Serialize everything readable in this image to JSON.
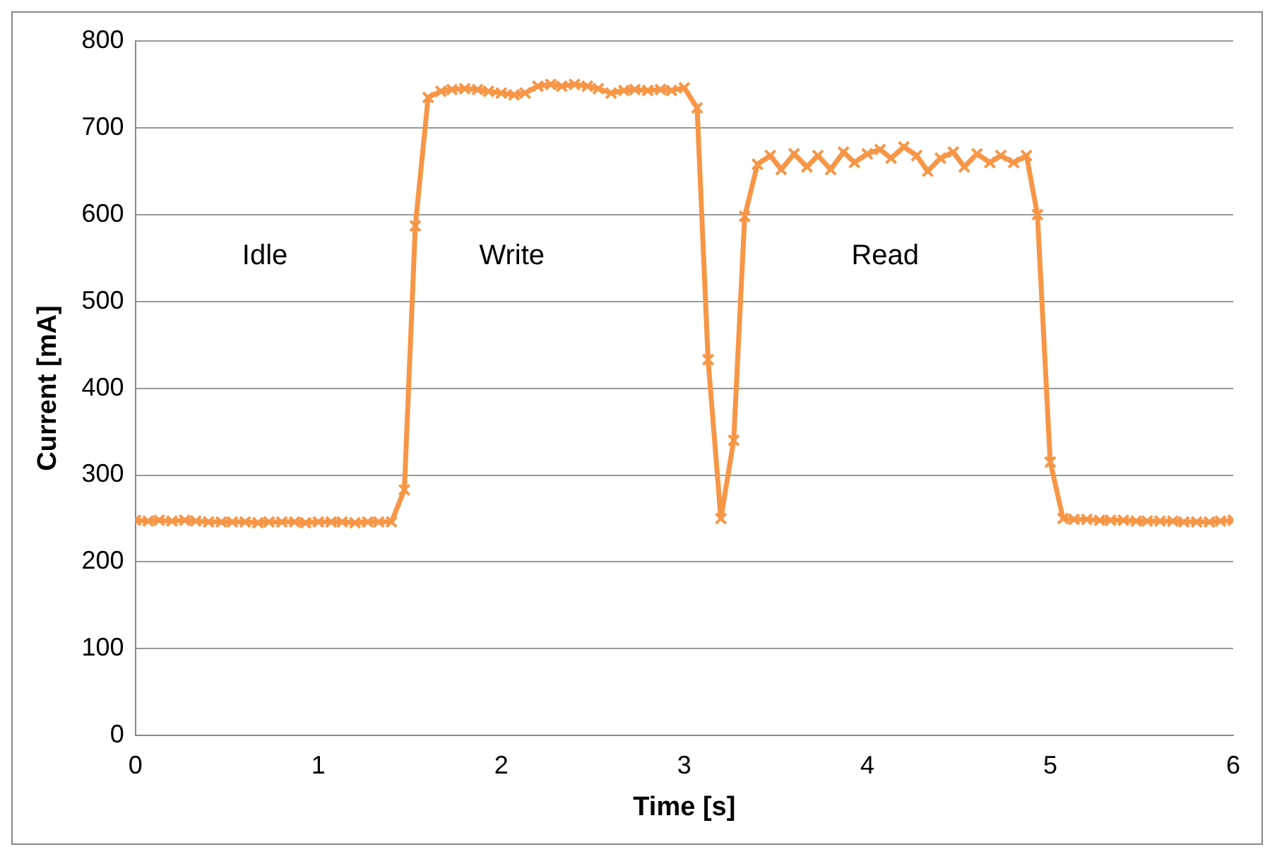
{
  "chart_data": {
    "type": "line",
    "xlabel": "Time [s]",
    "ylabel": "Current [mA]",
    "xlim": [
      0,
      6
    ],
    "xticks": [
      0,
      1,
      2,
      3,
      4,
      5,
      6
    ],
    "ylim": [
      0,
      800
    ],
    "yticks": [
      0,
      100,
      200,
      300,
      400,
      500,
      600,
      700,
      800
    ],
    "grid": "y",
    "legend": false,
    "marker": "cross",
    "line_style": "solid",
    "x": [
      0,
      0.07,
      0.13,
      0.2,
      0.27,
      0.33,
      0.4,
      0.47,
      0.53,
      0.6,
      0.67,
      0.73,
      0.8,
      0.87,
      0.93,
      1,
      1.07,
      1.13,
      1.2,
      1.27,
      1.33,
      1.4,
      1.47,
      1.53,
      1.6,
      1.67,
      1.73,
      1.8,
      1.87,
      1.93,
      2,
      2.07,
      2.13,
      2.2,
      2.27,
      2.33,
      2.4,
      2.47,
      2.53,
      2.6,
      2.67,
      2.73,
      2.8,
      2.87,
      2.93,
      3,
      3.07,
      3.13,
      3.2,
      3.27,
      3.33,
      3.4,
      3.47,
      3.53,
      3.6,
      3.67,
      3.73,
      3.8,
      3.87,
      3.93,
      4,
      4.07,
      4.13,
      4.2,
      4.27,
      4.33,
      4.4,
      4.47,
      4.53,
      4.6,
      4.67,
      4.73,
      4.8,
      4.87,
      4.93,
      5,
      5.07,
      5.13,
      5.2,
      5.27,
      5.33,
      5.4,
      5.47,
      5.53,
      5.6,
      5.67,
      5.73,
      5.8,
      5.87,
      5.93,
      6
    ],
    "series": [
      {
        "color": "#f79646",
        "values": [
          248,
          247,
          248,
          247,
          248,
          247,
          246,
          246,
          246,
          246,
          245,
          246,
          246,
          246,
          245,
          246,
          246,
          246,
          245,
          246,
          246,
          246,
          283,
          587,
          735,
          742,
          744,
          745,
          744,
          742,
          740,
          738,
          740,
          748,
          750,
          748,
          750,
          748,
          745,
          740,
          743,
          744,
          743,
          744,
          743,
          746,
          723,
          433,
          250,
          340,
          598,
          658,
          668,
          652,
          670,
          655,
          668,
          652,
          672,
          660,
          670,
          675,
          665,
          678,
          668,
          650,
          665,
          672,
          655,
          670,
          660,
          668,
          660,
          668,
          600,
          315,
          250,
          249,
          249,
          248,
          248,
          248,
          247,
          247,
          247,
          247,
          246,
          246,
          246,
          247,
          248
        ]
      }
    ],
    "annotations": [
      "Idle",
      "Write",
      "Read"
    ]
  }
}
